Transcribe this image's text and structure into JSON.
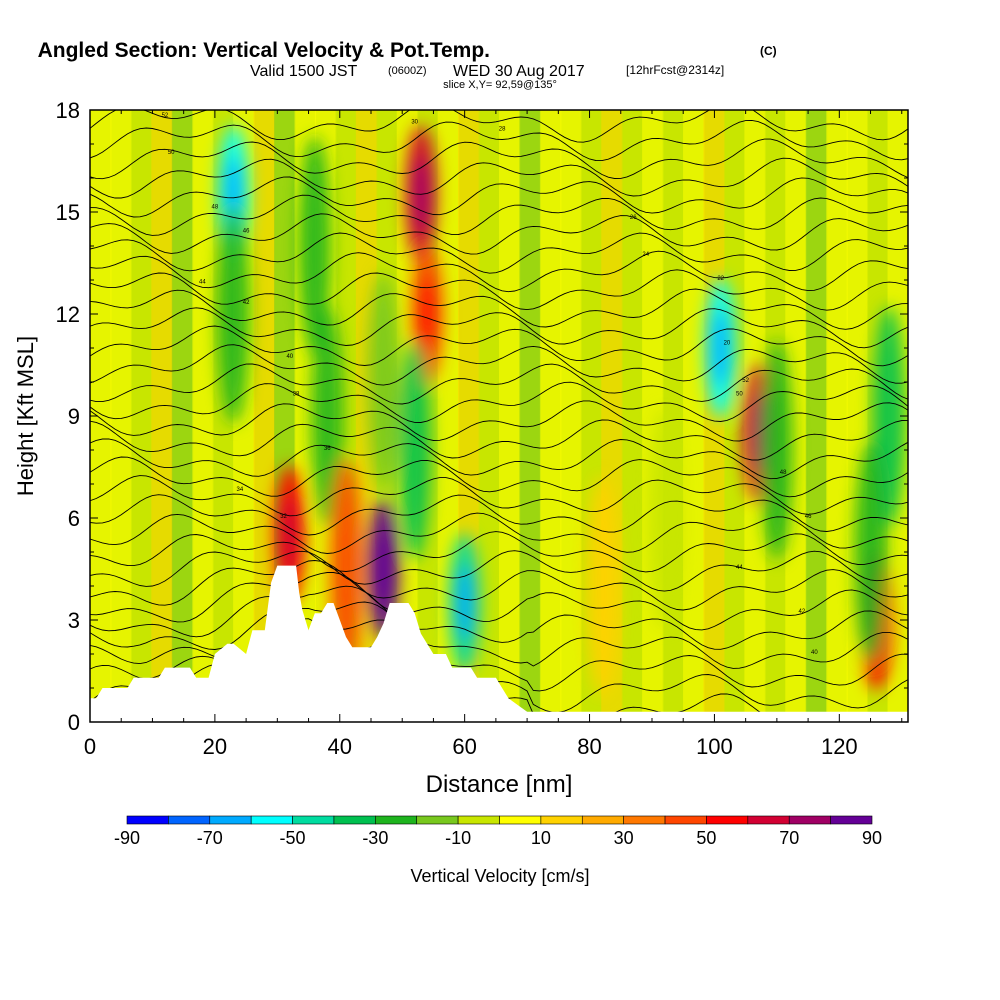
{
  "title": {
    "main": "Angled Section: Vertical Velocity & Pot.Temp.",
    "main_unit": "(C)",
    "valid": "Valid 1500 JST",
    "valid_utc": "(0600Z)",
    "valid_date": "WED 30 Aug 2017",
    "fcst": "[12hrFcst@2314z]",
    "slice": "slice X,Y= 92,59@135°"
  },
  "chart_data": {
    "type": "heatmap",
    "xlabel": "Distance [nm]",
    "ylabel": "Height [Kft MSL]",
    "xlim": [
      0,
      131
    ],
    "ylim": [
      0,
      18
    ],
    "xticks": [
      0,
      20,
      40,
      60,
      80,
      100,
      120
    ],
    "yticks": [
      0,
      3,
      6,
      9,
      12,
      15,
      18
    ],
    "grid": false,
    "contour_labels": [
      "52",
      "50",
      "48",
      "46",
      "44",
      "42",
      "40",
      "38",
      "36",
      "34",
      "32",
      "30",
      "28",
      "26",
      "24",
      "22",
      "20"
    ],
    "terrain_kft": [
      [
        0,
        0.7
      ],
      [
        1,
        0.7
      ],
      [
        2,
        1
      ],
      [
        6,
        1
      ],
      [
        7,
        1.3
      ],
      [
        11,
        1.3
      ],
      [
        12,
        1.6
      ],
      [
        16,
        1.6
      ],
      [
        17,
        1.3
      ],
      [
        19,
        1.3
      ],
      [
        20,
        2
      ],
      [
        22,
        2.3
      ],
      [
        23,
        2.3
      ],
      [
        25,
        2
      ],
      [
        26,
        2.7
      ],
      [
        28,
        2.7
      ],
      [
        29,
        4.1
      ],
      [
        30,
        4.6
      ],
      [
        33,
        4.6
      ],
      [
        33.5,
        3.8
      ],
      [
        34,
        3.3
      ],
      [
        35,
        2.7
      ],
      [
        36,
        3.2
      ],
      [
        37,
        3.2
      ],
      [
        38,
        3.5
      ],
      [
        39,
        3.5
      ],
      [
        40,
        3
      ],
      [
        41,
        2.5
      ],
      [
        42,
        2.2
      ],
      [
        45,
        2.2
      ],
      [
        46,
        2.5
      ],
      [
        47,
        2.9
      ],
      [
        48,
        3.5
      ],
      [
        51,
        3.5
      ],
      [
        52,
        3.2
      ],
      [
        53,
        2.6
      ],
      [
        55,
        2
      ],
      [
        57,
        2
      ],
      [
        58,
        1.6
      ],
      [
        61,
        1.6
      ],
      [
        62,
        1.3
      ],
      [
        65,
        1.3
      ],
      [
        66,
        1
      ],
      [
        67,
        0.7
      ],
      [
        70,
        0.3
      ],
      [
        131,
        0.3
      ]
    ],
    "velocity_cells": [
      {
        "x": 23,
        "y": 15.5,
        "v": -55
      },
      {
        "x": 23,
        "y": 12,
        "v": -30
      },
      {
        "x": 36,
        "y": 14,
        "v": -25
      },
      {
        "x": 38,
        "y": 9,
        "v": -30
      },
      {
        "x": 47,
        "y": 10,
        "v": -20
      },
      {
        "x": 53,
        "y": 15.5,
        "v": 60
      },
      {
        "x": 54,
        "y": 12,
        "v": 45
      },
      {
        "x": 52,
        "y": 8,
        "v": -35
      },
      {
        "x": 60,
        "y": 3.5,
        "v": -50
      },
      {
        "x": 32,
        "y": 5.5,
        "v": 55
      },
      {
        "x": 41,
        "y": 4.5,
        "v": 40
      },
      {
        "x": 47,
        "y": 4.5,
        "v": 85
      },
      {
        "x": 101,
        "y": 11,
        "v": -55
      },
      {
        "x": 107,
        "y": 8.5,
        "v": 60
      },
      {
        "x": 110,
        "y": 8,
        "v": -30
      },
      {
        "x": 128,
        "y": 9,
        "v": -40
      },
      {
        "x": 126,
        "y": 3,
        "v": 50
      },
      {
        "x": 125,
        "y": 5,
        "v": -25
      },
      {
        "x": 82,
        "y": 4,
        "v": 15
      },
      {
        "x": 92,
        "y": 6,
        "v": -10
      }
    ],
    "isentropes_count": 32
  },
  "colorbar": {
    "label": "Vertical Velocity [cm/s]",
    "ticks": [
      "-90",
      "-70",
      "-50",
      "-30",
      "-10",
      "10",
      "30",
      "50",
      "70",
      "90"
    ],
    "levels": [
      -90,
      -80,
      -70,
      -60,
      -50,
      -40,
      -30,
      -20,
      -10,
      0,
      10,
      20,
      30,
      40,
      50,
      60,
      70,
      80,
      90
    ],
    "colors": [
      "#0000ff",
      "#0064ff",
      "#00aaff",
      "#00ffff",
      "#00dca0",
      "#00c050",
      "#1eb41e",
      "#78c81e",
      "#c8e600",
      "#ffff00",
      "#ffd200",
      "#ffaa00",
      "#ff7800",
      "#ff4600",
      "#ff0000",
      "#d20032",
      "#a00064",
      "#640096"
    ]
  }
}
